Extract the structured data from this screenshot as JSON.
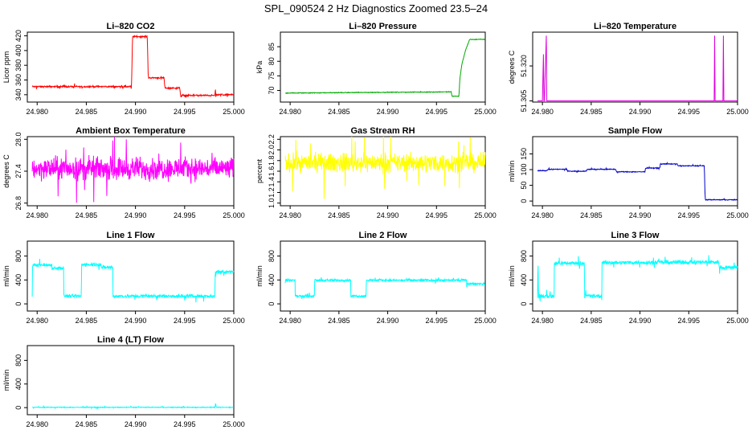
{
  "page_title": "SPL_090524  2 Hz Diagnostics Zoomed 23.5–24",
  "chart_data": [
    {
      "type": "line",
      "title": "Li–820 CO2",
      "ylabel": "Licor ppm",
      "xlim": [
        24.979,
        25.0
      ],
      "ylim": [
        330,
        425
      ],
      "xticks": [
        24.98,
        24.985,
        24.99,
        24.995,
        25.0
      ],
      "xtick_labels": [
        "24.980",
        "24.985",
        "24.990",
        "24.995",
        "25.000"
      ],
      "yticks": [
        340,
        360,
        380,
        400,
        420
      ],
      "ytick_labels": [
        "340",
        "360",
        "380",
        "400",
        "420"
      ],
      "color": "#ff0000",
      "noise": 0.8,
      "series": [
        {
          "x": [
            24.9795,
            24.9896,
            24.9897,
            24.9912,
            24.9913,
            24.9929,
            24.993,
            24.9945,
            24.9946,
            24.9981,
            24.99812,
            24.99818,
            24.9982,
            24.99998
          ],
          "y": [
            351,
            351,
            419,
            419,
            363,
            363,
            349,
            349,
            339,
            339,
            352,
            333,
            340,
            340
          ]
        }
      ]
    },
    {
      "type": "line",
      "title": "Li–820 Pressure",
      "ylabel": "kPa",
      "xlim": [
        24.979,
        25.0
      ],
      "ylim": [
        66,
        90
      ],
      "xticks": [
        24.98,
        24.985,
        24.99,
        24.995,
        25.0
      ],
      "xtick_labels": [
        "24.980",
        "24.985",
        "24.990",
        "24.995",
        "25.000"
      ],
      "yticks": [
        70,
        75,
        80,
        85
      ],
      "ytick_labels": [
        "70",
        "75",
        "80",
        "85"
      ],
      "color": "#00aa00",
      "noise": 0.1,
      "series": [
        {
          "x": [
            24.9795,
            24.9965,
            24.9966,
            24.9973,
            24.9974,
            24.9976,
            24.998,
            24.9984,
            24.99998
          ],
          "y": [
            69.1,
            69.5,
            68.0,
            68.0,
            74.0,
            79.0,
            84.0,
            87.5,
            87.5
          ]
        }
      ]
    },
    {
      "type": "line",
      "title": "Li–820 Temperature",
      "ylabel": "degrees C",
      "xlim": [
        24.979,
        25.0
      ],
      "ylim": [
        51.3045,
        51.3345
      ],
      "xticks": [
        24.98,
        24.985,
        24.99,
        24.995,
        25.0
      ],
      "xtick_labels": [
        "24.980",
        "24.985",
        "24.990",
        "24.995",
        "25.000"
      ],
      "yticks": [
        51.305,
        51.32
      ],
      "ytick_labels": [
        "51.305",
        "51.320"
      ],
      "color": "#dd00dd",
      "noise": 0,
      "series": [
        {
          "x": [
            24.9795,
            24.98,
            24.9801,
            24.98015,
            24.9802,
            24.9804,
            24.98045,
            24.9805,
            24.9976,
            24.99765,
            24.9977,
            24.9985,
            24.99855,
            24.9986,
            24.99998
          ],
          "y": [
            51.305,
            51.305,
            51.325,
            51.305,
            51.305,
            51.333,
            51.305,
            51.305,
            51.305,
            51.333,
            51.305,
            51.305,
            51.333,
            51.305,
            51.305
          ]
        }
      ]
    },
    {
      "type": "line",
      "title": "Ambient Box Temperature",
      "ylabel": "degrees C",
      "xlim": [
        24.979,
        25.0
      ],
      "ylim": [
        26.75,
        28.05
      ],
      "xticks": [
        24.98,
        24.985,
        24.99,
        24.995,
        25.0
      ],
      "xtick_labels": [
        "24.980",
        "24.985",
        "24.990",
        "24.995",
        "25.000"
      ],
      "yticks": [
        26.8,
        27.4,
        28.0
      ],
      "ytick_labels": [
        "26.8",
        "27.4",
        "28.0"
      ],
      "color": "#ff00ff",
      "noise": 0.16,
      "series": [
        {
          "x": [
            24.9795,
            24.99998
          ],
          "y": [
            27.45,
            27.45
          ]
        }
      ]
    },
    {
      "type": "line",
      "title": "Gas Stream RH",
      "ylabel": "percent",
      "xlim": [
        24.979,
        25.0
      ],
      "ylim": [
        0.95,
        2.25
      ],
      "xticks": [
        24.98,
        24.985,
        24.99,
        24.995,
        25.0
      ],
      "xtick_labels": [
        "24.980",
        "24.985",
        "24.990",
        "24.995",
        "25.000"
      ],
      "yticks": [
        1.0,
        1.2,
        1.4,
        1.6,
        1.8,
        2.0,
        2.2
      ],
      "ytick_labels": [
        "1.0",
        "1.2",
        "1.4",
        "1.6",
        "1.8",
        "2.0",
        "2.2"
      ],
      "color": "#ffff00",
      "noise": 0.13,
      "series": [
        {
          "x": [
            24.9795,
            24.99998
          ],
          "y": [
            1.76,
            1.76
          ]
        }
      ]
    },
    {
      "type": "line",
      "title": "Sample Flow",
      "ylabel": "ml/min",
      "xlim": [
        24.979,
        25.0
      ],
      "ylim": [
        -15,
        205
      ],
      "xticks": [
        24.98,
        24.985,
        24.99,
        24.995,
        25.0
      ],
      "xtick_labels": [
        "24.980",
        "24.985",
        "24.990",
        "24.995",
        "25.000"
      ],
      "yticks": [
        0,
        50,
        100,
        150
      ],
      "ytick_labels": [
        "0",
        "50",
        "100",
        "150"
      ],
      "color": "#0000cc",
      "noise": 1.0,
      "series": [
        {
          "x": [
            24.9795,
            24.9805,
            24.9806,
            24.9825,
            24.9826,
            24.9845,
            24.9846,
            24.9875,
            24.9876,
            24.9905,
            24.9906,
            24.992,
            24.9921,
            24.9938,
            24.9939,
            24.9966,
            24.99665,
            24.9967,
            24.99998
          ],
          "y": [
            97,
            97,
            101,
            101,
            95,
            95,
            101,
            101,
            93,
            93,
            105,
            105,
            118,
            118,
            112,
            112,
            35,
            4,
            4
          ]
        }
      ]
    },
    {
      "type": "line",
      "title": "Line 1 Flow",
      "ylabel": "ml/min",
      "xlim": [
        24.979,
        25.0
      ],
      "ylim": [
        -120,
        1050
      ],
      "xticks": [
        24.98,
        24.985,
        24.99,
        24.995,
        25.0
      ],
      "xtick_labels": [
        "24.980",
        "24.985",
        "24.990",
        "24.995",
        "25.000"
      ],
      "yticks": [
        0,
        400,
        800
      ],
      "ytick_labels": [
        "0",
        "400",
        "800"
      ],
      "color": "#00ffff",
      "noise": 22,
      "series": [
        {
          "x": [
            24.9795,
            24.97952,
            24.9815,
            24.98151,
            24.9827,
            24.98271,
            24.9845,
            24.98451,
            24.9865,
            24.98651,
            24.9877,
            24.98771,
            24.9981,
            24.99811,
            24.99998
          ],
          "y": [
            130,
            650,
            650,
            600,
            600,
            130,
            130,
            660,
            660,
            610,
            610,
            130,
            130,
            540,
            540
          ]
        }
      ]
    },
    {
      "type": "line",
      "title": "Line 2 Flow",
      "ylabel": "ml/min",
      "xlim": [
        24.979,
        25.0
      ],
      "ylim": [
        -120,
        1050
      ],
      "xticks": [
        24.98,
        24.985,
        24.99,
        24.995,
        25.0
      ],
      "xtick_labels": [
        "24.980",
        "24.985",
        "24.990",
        "24.995",
        "25.000"
      ],
      "yticks": [
        0,
        400,
        800
      ],
      "ytick_labels": [
        "0",
        "400",
        "800"
      ],
      "color": "#00ffff",
      "noise": 14,
      "series": [
        {
          "x": [
            24.9795,
            24.9805,
            24.98051,
            24.9825,
            24.98251,
            24.9862,
            24.98621,
            24.9878,
            24.98781,
            24.9981,
            24.99811,
            24.99998
          ],
          "y": [
            400,
            400,
            130,
            130,
            395,
            395,
            130,
            130,
            395,
            395,
            335,
            335
          ]
        }
      ]
    },
    {
      "type": "line",
      "title": "Line 3 Flow",
      "ylabel": "ml/min",
      "xlim": [
        24.979,
        25.0
      ],
      "ylim": [
        -120,
        1050
      ],
      "xticks": [
        24.98,
        24.985,
        24.99,
        24.995,
        25.0
      ],
      "xtick_labels": [
        "24.980",
        "24.985",
        "24.990",
        "24.995",
        "25.000"
      ],
      "yticks": [
        0,
        400,
        800
      ],
      "ytick_labels": [
        "0",
        "400",
        "800"
      ],
      "color": "#00ffff",
      "noise": 25,
      "series": [
        {
          "x": [
            24.9795,
            24.97955,
            24.9796,
            24.9812,
            24.98121,
            24.9843,
            24.98431,
            24.9861,
            24.98611,
            24.9981,
            24.99811,
            24.99998
          ],
          "y": [
            130,
            700,
            130,
            130,
            680,
            680,
            130,
            130,
            690,
            700,
            610,
            610
          ]
        }
      ]
    },
    {
      "type": "line",
      "title": "Line 4 (LT) Flow",
      "ylabel": "ml/min",
      "xlim": [
        24.979,
        25.0
      ],
      "ylim": [
        -120,
        1050
      ],
      "xticks": [
        24.98,
        24.985,
        24.99,
        24.995,
        25.0
      ],
      "xtick_labels": [
        "24.980",
        "24.985",
        "24.990",
        "24.995",
        "25.000"
      ],
      "yticks": [
        0,
        400,
        800
      ],
      "ytick_labels": [
        "0",
        "400",
        "800"
      ],
      "color": "#00ffff",
      "noise": 5,
      "series": [
        {
          "x": [
            24.9795,
            24.9981,
            24.99815,
            24.9982,
            24.99998
          ],
          "y": [
            5,
            5,
            80,
            5,
            5
          ]
        }
      ]
    }
  ]
}
